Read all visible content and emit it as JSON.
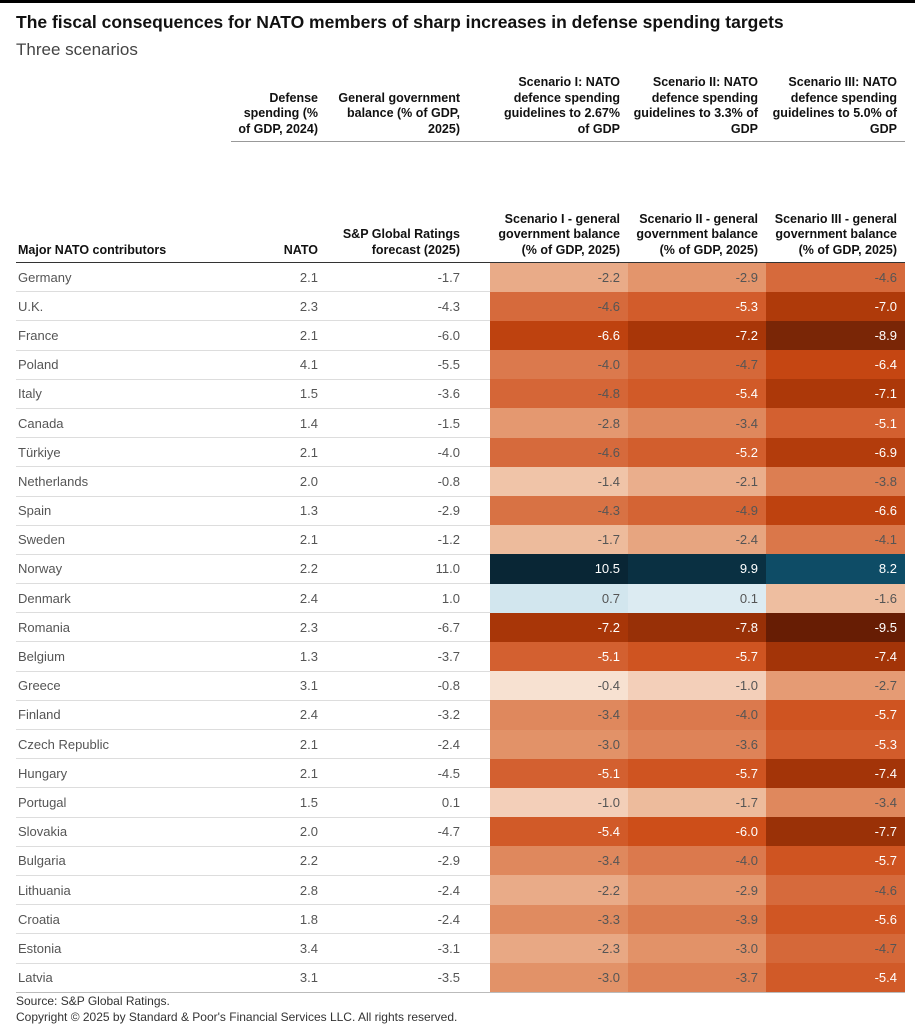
{
  "title": "The fiscal consequences for NATO members of sharp increases in defense spending targets",
  "subtitle": "Three scenarios",
  "table": {
    "group_headers": [
      "Defense spending (% of GDP, 2024)",
      "General government balance (% of GDP, 2025)",
      "Scenario I: NATO defence spending guidelines to 2.67% of GDP",
      "Scenario II: NATO defence spending guidelines to 3.3% of GDP",
      "Scenario III: NATO defence spending guidelines to 5.0% of GDP"
    ],
    "columns": [
      "Major NATO contributors",
      "NATO",
      "S&P Global Ratings forecast (2025)",
      "Scenario I - general government balance (% of GDP, 2025)",
      "Scenario II - general government balance (% of GDP, 2025)",
      "Scenario III - general government balance (% of GDP, 2025)"
    ],
    "rows": [
      [
        "Germany",
        "2.1",
        "-1.7",
        "-2.2",
        "-2.9",
        "-4.6"
      ],
      [
        "U.K.",
        "2.3",
        "-4.3",
        "-4.6",
        "-5.3",
        "-7.0"
      ],
      [
        "France",
        "2.1",
        "-6.0",
        "-6.6",
        "-7.2",
        "-8.9"
      ],
      [
        "Poland",
        "4.1",
        "-5.5",
        "-4.0",
        "-4.7",
        "-6.4"
      ],
      [
        "Italy",
        "1.5",
        "-3.6",
        "-4.8",
        "-5.4",
        "-7.1"
      ],
      [
        "Canada",
        "1.4",
        "-1.5",
        "-2.8",
        "-3.4",
        "-5.1"
      ],
      [
        "Türkiye",
        "2.1",
        "-4.0",
        "-4.6",
        "-5.2",
        "-6.9"
      ],
      [
        "Netherlands",
        "2.0",
        "-0.8",
        "-1.4",
        "-2.1",
        "-3.8"
      ],
      [
        "Spain",
        "1.3",
        "-2.9",
        "-4.3",
        "-4.9",
        "-6.6"
      ],
      [
        "Sweden",
        "2.1",
        "-1.2",
        "-1.7",
        "-2.4",
        "-4.1"
      ],
      [
        "Norway",
        "2.2",
        "11.0",
        "10.5",
        "9.9",
        "8.2"
      ],
      [
        "Denmark",
        "2.4",
        "1.0",
        "0.7",
        "0.1",
        "-1.6"
      ],
      [
        "Romania",
        "2.3",
        "-6.7",
        "-7.2",
        "-7.8",
        "-9.5"
      ],
      [
        "Belgium",
        "1.3",
        "-3.7",
        "-5.1",
        "-5.7",
        "-7.4"
      ],
      [
        "Greece",
        "3.1",
        "-0.8",
        "-0.4",
        "-1.0",
        "-2.7"
      ],
      [
        "Finland",
        "2.4",
        "-3.2",
        "-3.4",
        "-4.0",
        "-5.7"
      ],
      [
        "Czech Republic",
        "2.1",
        "-2.4",
        "-3.0",
        "-3.6",
        "-5.3"
      ],
      [
        "Hungary",
        "2.1",
        "-4.5",
        "-5.1",
        "-5.7",
        "-7.4"
      ],
      [
        "Portugal",
        "1.5",
        "0.1",
        "-1.0",
        "-1.7",
        "-3.4"
      ],
      [
        "Slovakia",
        "2.0",
        "-4.7",
        "-5.4",
        "-6.0",
        "-7.7"
      ],
      [
        "Bulgaria",
        "2.2",
        "-2.9",
        "-3.4",
        "-4.0",
        "-5.7"
      ],
      [
        "Lithuania",
        "2.8",
        "-2.4",
        "-2.2",
        "-2.9",
        "-4.6"
      ],
      [
        "Croatia",
        "1.8",
        "-2.4",
        "-3.3",
        "-3.9",
        "-5.6"
      ],
      [
        "Estonia",
        "3.4",
        "-3.1",
        "-2.3",
        "-3.0",
        "-4.7"
      ],
      [
        "Latvia",
        "3.1",
        "-3.5",
        "-3.0",
        "-3.7",
        "-5.4"
      ]
    ]
  },
  "footer": {
    "source": "Source: S&P Global Ratings.",
    "copyright": "Copyright © 2025 by Standard & Poor's Financial Services LLC. All rights reserved."
  }
}
